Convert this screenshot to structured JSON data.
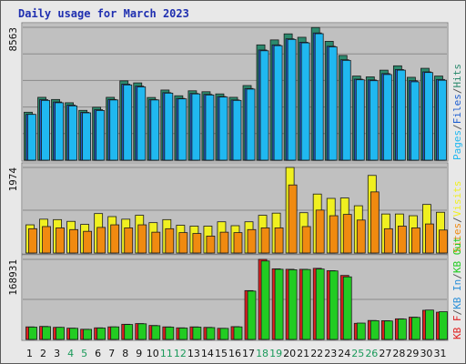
{
  "title": "Daily usage for March 2023",
  "colors": {
    "hits": "#2c8a6e",
    "files": "#1f5fd0",
    "pages": "#20b8f0",
    "visits": "#f0f020",
    "sites": "#f08a10",
    "kb_out": "#22cc22",
    "kb_in": "#2a8fd8",
    "kb_f": "#e02020",
    "weekend": "#1a9a5a",
    "weekday": "#111111",
    "plot_bg": "#c0c0c0",
    "title": "#1f2fb0"
  },
  "chart_data": [
    {
      "type": "bar",
      "panel": "hits-files-pages",
      "max_label": "8563",
      "ylim": [
        0,
        8563
      ],
      "legend_placement": "right-vertical",
      "legend": [
        {
          "text": "Pages",
          "color": "#20b8f0"
        },
        {
          "text": "/",
          "color": "#555555"
        },
        {
          "text": "Files",
          "color": "#1f5fd0"
        },
        {
          "text": "/",
          "color": "#555555"
        },
        {
          "text": "Hits",
          "color": "#2c8a6e"
        }
      ],
      "series": [
        {
          "name": "Hits",
          "color": "#2c8a6e",
          "values": [
            3090,
            4050,
            3910,
            3700,
            3210,
            3410,
            4050,
            5110,
            4980,
            4040,
            4520,
            4150,
            4470,
            4410,
            4270,
            4050,
            4810,
            7430,
            7750,
            8140,
            7920,
            8550,
            7660,
            6750,
            5420,
            5370,
            5800,
            6080,
            5340,
            5920,
            5420
          ]
        },
        {
          "name": "Files",
          "color": "#1f5fd0",
          "values": [
            2950,
            3900,
            3750,
            3550,
            3080,
            3250,
            3910,
            4900,
            4770,
            3900,
            4350,
            3980,
            4300,
            4240,
            4100,
            3880,
            4620,
            7100,
            7430,
            7820,
            7600,
            8200,
            7340,
            6470,
            5220,
            5170,
            5580,
            5840,
            5120,
            5690,
            5200
          ]
        },
        {
          "name": "Pages",
          "color": "#20b8f0",
          "values": [
            2950,
            3850,
            3700,
            3500,
            3050,
            3200,
            3880,
            4850,
            4720,
            3880,
            4320,
            3950,
            4270,
            4200,
            4070,
            3850,
            4580,
            7050,
            7380,
            7780,
            7560,
            8150,
            7300,
            6430,
            5180,
            5120,
            5520,
            5800,
            5050,
            5650,
            5150
          ]
        }
      ]
    },
    {
      "type": "bar",
      "panel": "visits-sites",
      "max_label": "1974",
      "ylim": [
        0,
        1974
      ],
      "legend_placement": "right-vertical",
      "legend": [
        {
          "text": "Sites",
          "color": "#f08a10"
        },
        {
          "text": "/",
          "color": "#555555"
        },
        {
          "text": "Visits",
          "color": "#f0f020"
        }
      ],
      "series": [
        {
          "name": "Visits",
          "color": "#f0f020",
          "values": [
            650,
            780,
            770,
            730,
            660,
            910,
            840,
            780,
            870,
            700,
            770,
            640,
            620,
            620,
            720,
            630,
            720,
            870,
            920,
            1974,
            930,
            1360,
            1260,
            1270,
            1090,
            1790,
            900,
            900,
            860,
            1120,
            940
          ]
        },
        {
          "name": "Sites",
          "color": "#f08a10",
          "values": [
            560,
            610,
            580,
            540,
            500,
            590,
            650,
            580,
            650,
            480,
            560,
            470,
            450,
            390,
            480,
            470,
            540,
            580,
            580,
            1570,
            610,
            990,
            860,
            890,
            760,
            1410,
            560,
            620,
            580,
            670,
            530
          ]
        }
      ]
    },
    {
      "type": "bar",
      "panel": "kbf-kbin-kbout",
      "max_label": "168931",
      "ylim": [
        0,
        168931
      ],
      "legend_placement": "right-vertical",
      "legend": [
        {
          "text": "KB F",
          "color": "#e02020"
        },
        {
          "text": "/",
          "color": "#555555"
        },
        {
          "text": "KB In",
          "color": "#2a8fd8"
        },
        {
          "text": "/",
          "color": "#555555"
        },
        {
          "text": "KB Out",
          "color": "#22cc22"
        }
      ],
      "series": [
        {
          "name": "KB F",
          "color": "#e02020",
          "values": [
            26500,
            27500,
            25500,
            23800,
            21500,
            24500,
            26500,
            32000,
            33500,
            29500,
            26500,
            24500,
            26500,
            25500,
            23500,
            27000,
            103000,
            168931,
            149000,
            148000,
            148000,
            150000,
            145000,
            135000,
            34000,
            40000,
            39500,
            43500,
            47000,
            61500,
            57500
          ]
        },
        {
          "name": "KB Out",
          "color": "#22cc22",
          "values": [
            26000,
            27000,
            25500,
            23500,
            21200,
            24000,
            26500,
            31500,
            33000,
            29000,
            26000,
            24000,
            26000,
            25000,
            23300,
            26500,
            102000,
            165500,
            148000,
            147000,
            147500,
            148500,
            144500,
            132000,
            34500,
            39500,
            39000,
            43000,
            46500,
            62000,
            58500
          ]
        }
      ]
    }
  ],
  "days": [
    {
      "label": "1",
      "weekend": false
    },
    {
      "label": "2",
      "weekend": false
    },
    {
      "label": "3",
      "weekend": false
    },
    {
      "label": "4",
      "weekend": true
    },
    {
      "label": "5",
      "weekend": true
    },
    {
      "label": "6",
      "weekend": false
    },
    {
      "label": "7",
      "weekend": false
    },
    {
      "label": "8",
      "weekend": false
    },
    {
      "label": "9",
      "weekend": false
    },
    {
      "label": "10",
      "weekend": false
    },
    {
      "label": "11",
      "weekend": true
    },
    {
      "label": "12",
      "weekend": true
    },
    {
      "label": "13",
      "weekend": false
    },
    {
      "label": "14",
      "weekend": false
    },
    {
      "label": "15",
      "weekend": false
    },
    {
      "label": "16",
      "weekend": false
    },
    {
      "label": "17",
      "weekend": false
    },
    {
      "label": "18",
      "weekend": true
    },
    {
      "label": "19",
      "weekend": true
    },
    {
      "label": "20",
      "weekend": false
    },
    {
      "label": "21",
      "weekend": false
    },
    {
      "label": "22",
      "weekend": false
    },
    {
      "label": "23",
      "weekend": false
    },
    {
      "label": "24",
      "weekend": false
    },
    {
      "label": "25",
      "weekend": true
    },
    {
      "label": "26",
      "weekend": true
    },
    {
      "label": "27",
      "weekend": false
    },
    {
      "label": "28",
      "weekend": false
    },
    {
      "label": "29",
      "weekend": false
    },
    {
      "label": "30",
      "weekend": false
    },
    {
      "label": "31",
      "weekend": false
    }
  ]
}
